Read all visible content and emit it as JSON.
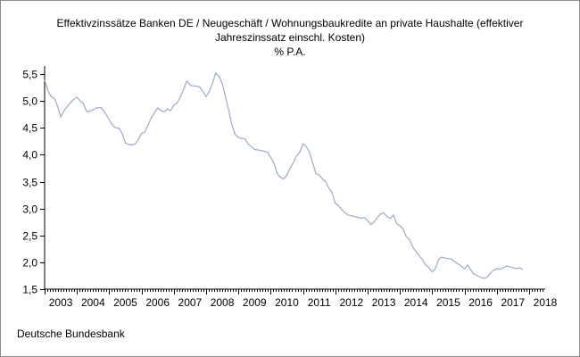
{
  "chart_data": {
    "type": "line",
    "title_lines": [
      "Effektivzinssätze Banken DE / Neugeschäft / Wohnungsbaukredite an private Haushalte (effektiver",
      "Jahreszinssatz einschl. Kosten)"
    ],
    "ylabel": "% P.A.",
    "xlabel": "",
    "ylim": [
      1.5,
      5.6
    ],
    "yticks": [
      "1,5",
      "2,0",
      "2,5",
      "3,0",
      "3,5",
      "4,0",
      "4,5",
      "5,0",
      "5,5"
    ],
    "ytick_values": [
      1.5,
      2.0,
      2.5,
      3.0,
      3.5,
      4.0,
      4.5,
      5.0,
      5.5
    ],
    "xlim": [
      2003,
      2018.5
    ],
    "year_labels": [
      "2003",
      "2004",
      "2005",
      "2006",
      "2007",
      "2008",
      "2009",
      "2010",
      "2011",
      "2012",
      "2013",
      "2014",
      "2015",
      "2016",
      "2017",
      "2018"
    ],
    "grid": false,
    "line_color": "#9aaac8",
    "series": [
      {
        "name": "",
        "x": [
          2003.0,
          2003.1,
          2003.2,
          2003.3,
          2003.4,
          2003.5,
          2003.6,
          2003.75,
          2003.9,
          2004.0,
          2004.1,
          2004.2,
          2004.3,
          2004.45,
          2004.6,
          2004.75,
          2004.9,
          2005.0,
          2005.1,
          2005.2,
          2005.3,
          2005.4,
          2005.5,
          2005.6,
          2005.7,
          2005.8,
          2005.9,
          2006.0,
          2006.1,
          2006.2,
          2006.3,
          2006.4,
          2006.5,
          2006.6,
          2006.7,
          2006.8,
          2006.9,
          2007.0,
          2007.1,
          2007.2,
          2007.3,
          2007.4,
          2007.5,
          2007.6,
          2007.7,
          2007.8,
          2007.9,
          2008.0,
          2008.1,
          2008.2,
          2008.3,
          2008.4,
          2008.5,
          2008.6,
          2008.7,
          2008.8,
          2008.9,
          2009.0,
          2009.1,
          2009.2,
          2009.3,
          2009.5,
          2009.7,
          2009.9,
          2010.0,
          2010.1,
          2010.2,
          2010.3,
          2010.4,
          2010.5,
          2010.6,
          2010.7,
          2010.8,
          2010.9,
          2011.0,
          2011.1,
          2011.2,
          2011.3,
          2011.4,
          2011.5,
          2011.6,
          2011.7,
          2011.8,
          2011.9,
          2012.0,
          2012.1,
          2012.2,
          2012.3,
          2012.4,
          2012.6,
          2012.8,
          2012.9,
          2013.0,
          2013.1,
          2013.2,
          2013.3,
          2013.4,
          2013.5,
          2013.6,
          2013.7,
          2013.8,
          2013.9,
          2014.0,
          2014.1,
          2014.2,
          2014.3,
          2014.4,
          2014.5,
          2014.6,
          2014.7,
          2014.8,
          2014.9,
          2015.0,
          2015.1,
          2015.2,
          2015.3,
          2015.4,
          2015.5,
          2015.6,
          2015.7,
          2015.8,
          2015.9,
          2016.0,
          2016.1,
          2016.2,
          2016.3,
          2016.4,
          2016.5,
          2016.6,
          2016.7,
          2016.8,
          2016.9,
          2017.0,
          2017.1,
          2017.2,
          2017.3,
          2017.4,
          2017.5,
          2017.6,
          2017.7,
          2017.8
        ],
        "y": [
          5.39,
          5.2,
          5.08,
          5.05,
          4.9,
          4.7,
          4.82,
          4.93,
          5.03,
          5.07,
          5.0,
          4.95,
          4.8,
          4.82,
          4.87,
          4.88,
          4.75,
          4.65,
          4.55,
          4.5,
          4.5,
          4.4,
          4.22,
          4.19,
          4.18,
          4.2,
          4.28,
          4.4,
          4.42,
          4.55,
          4.68,
          4.78,
          4.87,
          4.82,
          4.8,
          4.85,
          4.82,
          4.92,
          4.96,
          5.07,
          5.21,
          5.37,
          5.3,
          5.28,
          5.28,
          5.26,
          5.18,
          5.08,
          5.18,
          5.33,
          5.52,
          5.46,
          5.32,
          5.08,
          4.83,
          4.55,
          4.38,
          4.32,
          4.3,
          4.3,
          4.2,
          4.1,
          4.08,
          4.05,
          3.95,
          3.85,
          3.65,
          3.58,
          3.55,
          3.62,
          3.75,
          3.85,
          3.98,
          4.05,
          4.2,
          4.15,
          4.05,
          3.85,
          3.65,
          3.62,
          3.55,
          3.5,
          3.38,
          3.3,
          3.1,
          3.05,
          2.98,
          2.92,
          2.88,
          2.85,
          2.82,
          2.83,
          2.78,
          2.7,
          2.75,
          2.83,
          2.9,
          2.92,
          2.85,
          2.82,
          2.88,
          2.72,
          2.68,
          2.62,
          2.48,
          2.42,
          2.28,
          2.2,
          2.12,
          2.05,
          1.95,
          1.9,
          1.82,
          1.88,
          2.05,
          2.1,
          2.08,
          2.07,
          2.06,
          2.01,
          1.97,
          1.93,
          1.88,
          1.95,
          1.85,
          1.78,
          1.75,
          1.72,
          1.7,
          1.72,
          1.8,
          1.85,
          1.88,
          1.87,
          1.9,
          1.93,
          1.92,
          1.9,
          1.88,
          1.9,
          1.87
        ]
      }
    ]
  },
  "footer": {
    "source": "Deutsche Bundesbank"
  }
}
